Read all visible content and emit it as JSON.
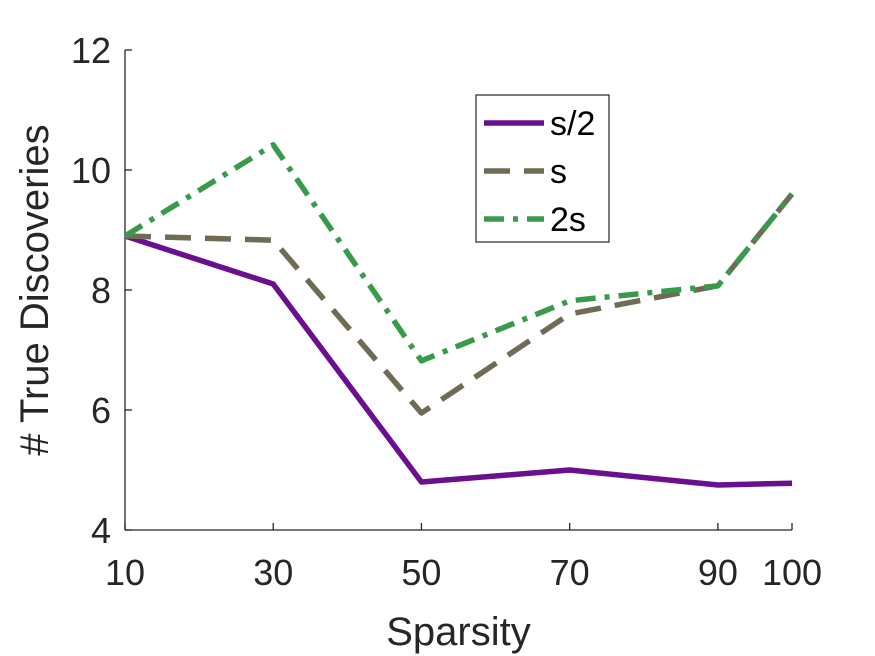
{
  "chart_data": {
    "type": "line",
    "x": [
      10,
      30,
      50,
      70,
      90,
      100
    ],
    "xticks": [
      10,
      30,
      50,
      70,
      90,
      100
    ],
    "yticks": [
      4,
      6,
      8,
      10,
      12
    ],
    "xlim": [
      10,
      100
    ],
    "ylim": [
      4,
      12
    ],
    "xlabel": "Sparsity",
    "ylabel": "# True Discoveries",
    "grid": false,
    "legend_position": "top-right-inside",
    "series": [
      {
        "name": "s/2",
        "values": [
          8.9,
          8.1,
          4.8,
          5.0,
          4.75,
          4.78
        ],
        "color": "#6a0f8e",
        "style": "solid"
      },
      {
        "name": "s",
        "values": [
          8.9,
          8.83,
          5.95,
          7.6,
          8.07,
          9.6
        ],
        "color": "#6f6b55",
        "style": "dashed"
      },
      {
        "name": "2s",
        "values": [
          8.9,
          10.42,
          6.82,
          7.82,
          8.07,
          9.6
        ],
        "color": "#3a9a4b",
        "style": "dashdot"
      }
    ]
  }
}
